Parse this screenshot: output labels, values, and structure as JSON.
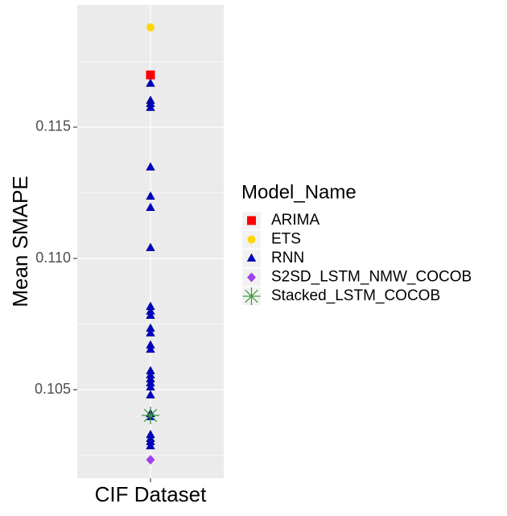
{
  "chart_data": {
    "type": "strip",
    "y_label": "Mean SMAPE",
    "categories": [
      "CIF Dataset"
    ],
    "legend_title": "Model_Name",
    "legend_position": "right",
    "ylim": [
      0.10163,
      0.11966
    ],
    "yticks": [
      0.105,
      {
        "value": 0.11,
        "label": "0.110"
      },
      0.115
    ],
    "y_minor_ticks": [
      0.1025,
      0.1075,
      0.1125,
      0.1175
    ],
    "grid": true,
    "series": [
      {
        "name": "ARIMA",
        "color": "#ff0000",
        "shape": "square",
        "values": [
          0.11699
        ]
      },
      {
        "name": "ETS",
        "color": "#ffd700",
        "shape": "circle",
        "values": [
          0.1188
        ]
      },
      {
        "name": "RNN",
        "color": "#0000cd",
        "shape": "triangle",
        "values": [
          0.11666,
          0.11601,
          0.11589,
          0.11574,
          0.11347,
          0.11236,
          0.11193,
          0.1104,
          0.10816,
          0.10798,
          0.10782,
          0.10733,
          0.10715,
          0.10669,
          0.10653,
          0.10571,
          0.10555,
          0.1054,
          0.10525,
          0.10509,
          0.10479,
          0.10408,
          0.10396,
          0.10328,
          0.10313,
          0.10301,
          0.10285
        ]
      },
      {
        "name": "S2SD_LSTM_NMW_COCOB",
        "color": "#a040f0",
        "shape": "diamond",
        "values": [
          0.10233
        ]
      },
      {
        "name": "Stacked_LSTM_COCOB",
        "color": "#3f9b3f",
        "shape": "asterisk",
        "values": [
          0.10402
        ]
      }
    ]
  }
}
